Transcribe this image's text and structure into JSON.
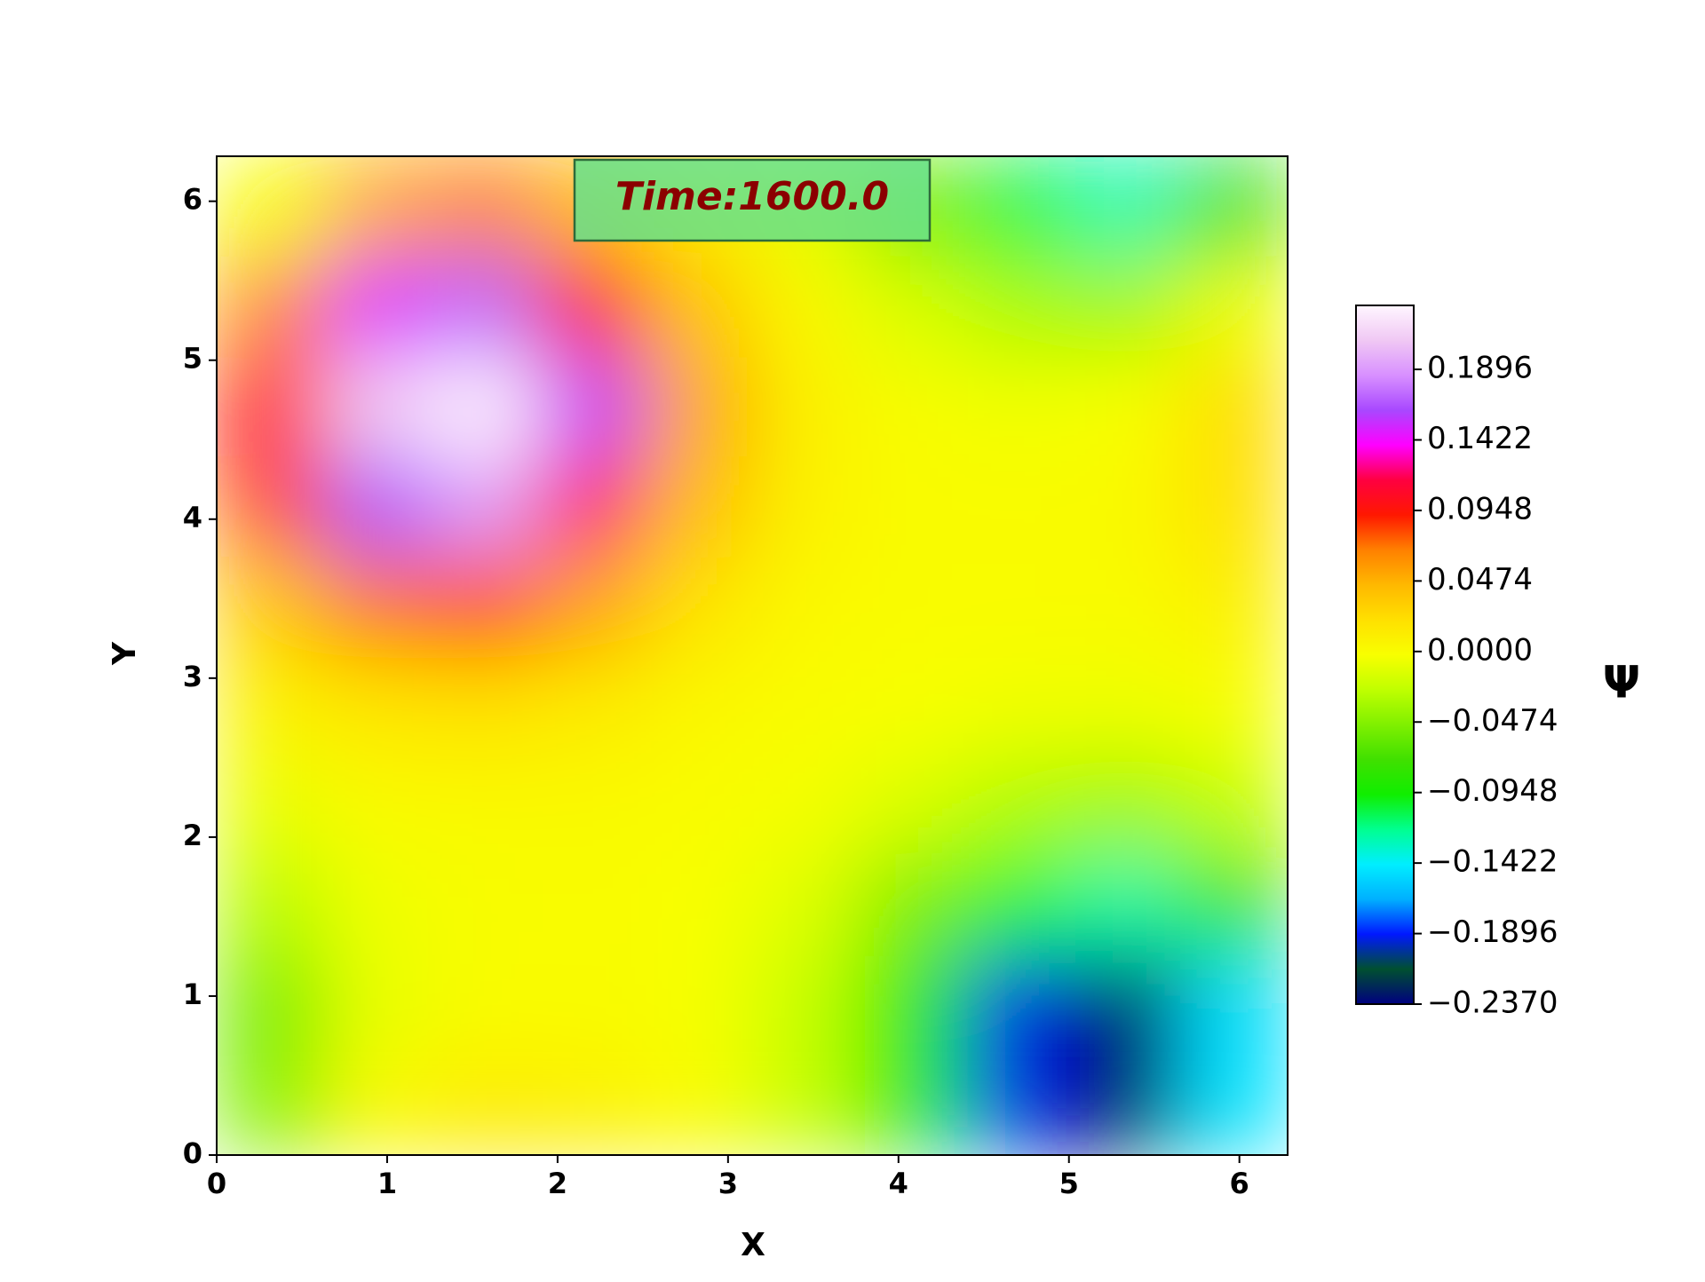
{
  "chart_data": {
    "type": "heatmap",
    "annotation": "Time:1600.0",
    "x_label": "X",
    "y_label": "Y",
    "colorbar_label": "Ψ",
    "x": [
      0.31,
      0.94,
      1.57,
      2.2,
      2.83,
      3.46,
      4.08,
      4.71,
      5.34,
      5.97
    ],
    "y": [
      0.31,
      0.94,
      1.57,
      2.2,
      2.83,
      3.46,
      4.08,
      4.71,
      5.34,
      5.97
    ],
    "z": [
      [
        -0.048,
        0.002,
        0.013,
        0.009,
        0.0,
        -0.023,
        -0.091,
        -0.193,
        -0.229,
        -0.147
      ],
      [
        -0.053,
        -0.009,
        0.0,
        0.001,
        -0.003,
        -0.023,
        -0.091,
        -0.193,
        -0.229,
        -0.149
      ],
      [
        -0.029,
        -0.006,
        -0.001,
        0.0,
        -0.002,
        -0.013,
        -0.05,
        -0.106,
        -0.126,
        -0.082
      ],
      [
        -0.008,
        0.001,
        0.002,
        0.002,
        0.0,
        -0.004,
        -0.015,
        -0.031,
        -0.037,
        -0.024
      ],
      [
        0.007,
        0.017,
        0.02,
        0.013,
        0.004,
        0.0,
        -0.002,
        -0.005,
        -0.006,
        -0.002
      ],
      [
        0.035,
        0.072,
        0.083,
        0.053,
        0.018,
        0.003,
        0.0,
        0.0,
        0.001,
        0.009
      ],
      [
        0.08,
        0.166,
        0.191,
        0.121,
        0.042,
        0.008,
        0.001,
        0.0,
        0.002,
        0.021
      ],
      [
        0.101,
        0.212,
        0.245,
        0.155,
        0.053,
        0.009,
        -0.001,
        -0.005,
        -0.002,
        0.023
      ],
      [
        0.063,
        0.147,
        0.171,
        0.108,
        0.037,
        0.003,
        -0.015,
        -0.033,
        -0.037,
        -0.006
      ],
      [
        -0.002,
        0.052,
        0.066,
        0.042,
        0.013,
        -0.01,
        -0.051,
        -0.108,
        -0.127,
        -0.076
      ]
    ],
    "xlim": [
      0,
      6.283
    ],
    "ylim": [
      0,
      6.283
    ],
    "xticks": [
      0,
      1,
      2,
      3,
      4,
      5,
      6
    ],
    "yticks": [
      0,
      1,
      2,
      3,
      4,
      5,
      6
    ],
    "clim": [
      -0.237,
      0.2326
    ],
    "cticks": [
      {
        "value": -0.237,
        "label": "−0.2370"
      },
      {
        "value": -0.1896,
        "label": "−0.1896"
      },
      {
        "value": -0.1422,
        "label": "−0.1422"
      },
      {
        "value": -0.0948,
        "label": "−0.0948"
      },
      {
        "value": -0.0474,
        "label": "−0.0474"
      },
      {
        "value": 0,
        "label": "0.0000"
      },
      0.0474,
      0.0948,
      0.1422,
      0.1896
    ],
    "colormap": [
      "#000080",
      "#005030",
      "#0018ff",
      "#00b0ff",
      "#00eeff",
      "#00ff90",
      "#10ee00",
      "#40e000",
      "#80f000",
      "#c0ff00",
      "#f8ff00",
      "#ffe000",
      "#ffb800",
      "#ff8000",
      "#ff1800",
      "#ff0040",
      "#ff00ff",
      "#a848ff",
      "#d890ff",
      "#f0c8f4",
      "#fff6ff"
    ],
    "annotation_box_color": "#66e089",
    "annotation_text_color": "#8b0000"
  }
}
